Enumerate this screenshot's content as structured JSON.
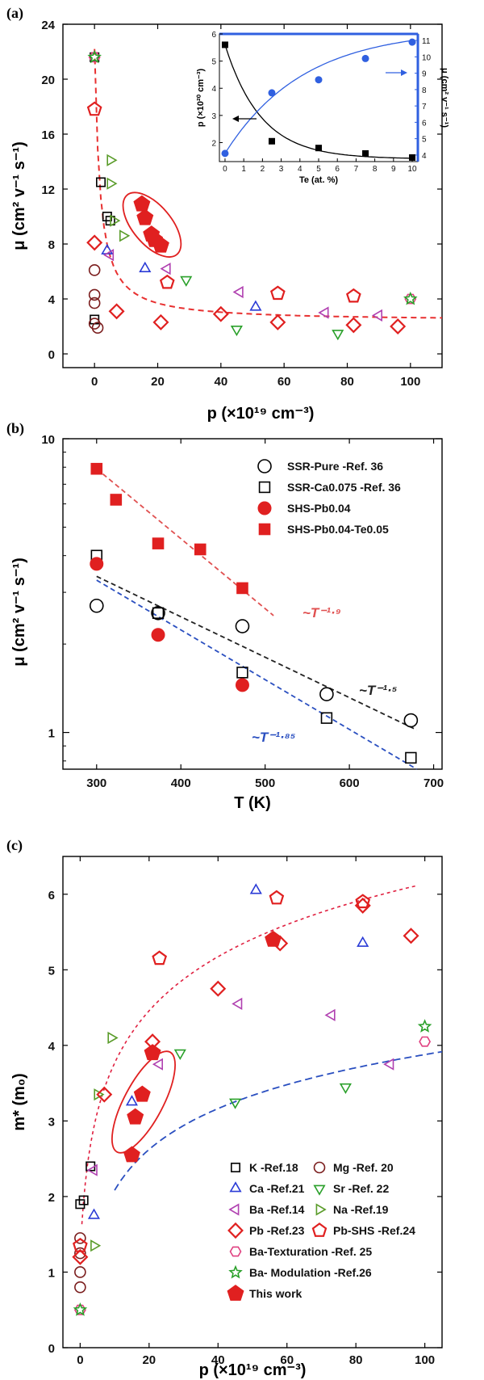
{
  "chart_data": [
    {
      "panel": "(a)",
      "type": "scatter",
      "xlabel": "p (×10¹⁹ cm⁻³)",
      "ylabel": "μ (cm² v⁻¹ s⁻¹)",
      "xlim": [
        -10,
        110
      ],
      "ylim": [
        -1,
        24
      ],
      "xticks": [
        0,
        20,
        40,
        60,
        80,
        100
      ],
      "yticks": [
        0,
        4,
        8,
        12,
        16,
        20,
        24
      ],
      "series": [
        {
          "marker": "square",
          "color": "#000000",
          "points": [
            [
              0,
              21.6
            ],
            [
              2,
              12.5
            ],
            [
              4,
              10
            ],
            [
              5,
              9.7
            ],
            [
              0,
              2.5
            ]
          ]
        },
        {
          "marker": "circle",
          "color": "#7a1c1c",
          "points": [
            [
              0,
              6.1
            ],
            [
              0,
              4.3
            ],
            [
              0,
              3.7
            ],
            [
              0,
              2.2
            ],
            [
              1,
              1.9
            ]
          ]
        },
        {
          "marker": "triangle-up",
          "color": "#2a3bd6",
          "points": [
            [
              4,
              7.5
            ],
            [
              16,
              6.2
            ],
            [
              51,
              3.4
            ]
          ]
        },
        {
          "marker": "triangle-down",
          "color": "#2aa02a",
          "points": [
            [
              29,
              5.4
            ],
            [
              45,
              1.8
            ],
            [
              77,
              1.5
            ]
          ]
        },
        {
          "marker": "triangle-left",
          "color": "#b040b0",
          "points": [
            [
              5,
              7.2
            ],
            [
              23,
              6.2
            ],
            [
              46,
              4.5
            ],
            [
              73,
              3.0
            ],
            [
              90,
              2.8
            ]
          ]
        },
        {
          "marker": "triangle-right",
          "color": "#5a9c2a",
          "points": [
            [
              5,
              14.1
            ],
            [
              5,
              12.4
            ],
            [
              6,
              9.7
            ],
            [
              9,
              8.6
            ]
          ]
        },
        {
          "marker": "diamond",
          "color": "#e02020",
          "points": [
            [
              0,
              8.1
            ],
            [
              7,
              3.1
            ],
            [
              21,
              2.3
            ],
            [
              40,
              2.9
            ],
            [
              58,
              2.3
            ],
            [
              82,
              2.1
            ],
            [
              96,
              2.0
            ]
          ]
        },
        {
          "marker": "pentagon",
          "color": "#e02020",
          "points": [
            [
              0,
              17.8
            ],
            [
              23,
              5.2
            ],
            [
              58,
              4.4
            ],
            [
              82,
              4.2
            ]
          ]
        },
        {
          "marker": "hexagon",
          "color": "#e04080",
          "points": [
            [
              0,
              21.6
            ],
            [
              100,
              4.0
            ]
          ]
        },
        {
          "marker": "star",
          "color": "#2aa02a",
          "points": [
            [
              0,
              21.6
            ],
            [
              100,
              4.0
            ]
          ]
        },
        {
          "marker": "filled-pentagon",
          "color": "#e02020",
          "points": [
            [
              15,
              10.9
            ],
            [
              16,
              9.9
            ],
            [
              18,
              8.7
            ],
            [
              19,
              8.3
            ],
            [
              21,
              7.9
            ]
          ]
        }
      ],
      "inset": {
        "xlabel": "Te (at. %)",
        "ylabel_left": "p (×10²⁰ cm⁻³)",
        "ylabel_right": "μ (cm² v⁻¹ s⁻¹)",
        "xlim": [
          -0.3,
          10.3
        ],
        "ylim_left": [
          1.3,
          6
        ],
        "ylim_right": [
          3.6,
          11.4
        ],
        "xticks": [
          0,
          1,
          2,
          3,
          4,
          5,
          6,
          7,
          8,
          9,
          10
        ],
        "yticks_left": [
          2,
          3,
          4,
          5,
          6
        ],
        "yticks_right": [
          4,
          5,
          6,
          7,
          8,
          9,
          10,
          11
        ],
        "left_series": {
          "color": "#000000",
          "x": [
            0,
            2.5,
            5,
            7.5,
            10
          ],
          "y": [
            5.6,
            2.05,
            1.8,
            1.6,
            1.45
          ]
        },
        "right_series": {
          "color": "#3060e0",
          "x": [
            0,
            2.5,
            5,
            7.5,
            10
          ],
          "y": [
            4.1,
            7.8,
            8.6,
            9.9,
            10.9
          ]
        }
      }
    },
    {
      "panel": "(b)",
      "type": "scatter",
      "xlabel": "T (K)",
      "ylabel": "μ (cm² v⁻¹ s⁻¹)",
      "yscale": "log",
      "xlim": [
        260,
        710
      ],
      "ylim": [
        0.75,
        10
      ],
      "xticks": [
        300,
        400,
        500,
        600,
        700
      ],
      "yticks": [
        1,
        10
      ],
      "legend_position": "top-right",
      "series": [
        {
          "name": "SSR-Pure -Ref. 36",
          "marker": "open-circle",
          "color": "#000000",
          "x": [
            300,
            373,
            473,
            573,
            673
          ],
          "y": [
            2.7,
            2.55,
            2.3,
            1.35,
            1.1
          ]
        },
        {
          "name": "SSR-Ca0.075 -Ref. 36",
          "marker": "open-square",
          "color": "#000000",
          "x": [
            300,
            373,
            473,
            573,
            673
          ],
          "y": [
            4.0,
            2.55,
            1.6,
            1.12,
            0.82
          ]
        },
        {
          "name": "SHS-Pb0.04",
          "marker": "filled-circle",
          "color": "#e02020",
          "x": [
            300,
            373,
            473
          ],
          "y": [
            3.75,
            2.15,
            1.45
          ]
        },
        {
          "name": "SHS-Pb0.04-Te0.05",
          "marker": "filled-square",
          "color": "#e02020",
          "x": [
            300,
            323,
            373,
            423,
            473
          ],
          "y": [
            7.9,
            6.2,
            4.4,
            4.2,
            3.1
          ]
        }
      ],
      "fits": [
        {
          "label": "~T⁻¹·⁹",
          "color": "#e05050",
          "x": [
            300,
            510
          ],
          "y": [
            7.9,
            2.5
          ]
        },
        {
          "label": "~T⁻¹·⁵",
          "color": "#222222",
          "x": [
            300,
            680
          ],
          "y": [
            3.4,
            1.02
          ]
        },
        {
          "label": "~T⁻¹·⁸⁵",
          "color": "#2a4fc0",
          "x": [
            300,
            680
          ],
          "y": [
            3.3,
            0.75
          ]
        }
      ]
    },
    {
      "panel": "(c)",
      "type": "scatter",
      "xlabel": "p (×10¹⁹ cm⁻³)",
      "ylabel": "m* (m₀)",
      "xlim": [
        -5,
        105
      ],
      "ylim": [
        0,
        6.5
      ],
      "xticks": [
        0,
        20,
        40,
        60,
        80,
        100
      ],
      "yticks": [
        0,
        1,
        2,
        3,
        4,
        5,
        6
      ],
      "legend_position": "bottom-right",
      "series": [
        {
          "name": "K -Ref.18",
          "marker": "square",
          "color": "#000000",
          "points": [
            [
              0,
              1.9
            ],
            [
              1,
              1.95
            ],
            [
              3,
              2.4
            ]
          ]
        },
        {
          "name": "Mg -Ref. 20",
          "marker": "circle",
          "color": "#7a1c1c",
          "points": [
            [
              0,
              1.45
            ],
            [
              0,
              1.25
            ],
            [
              0,
              1.0
            ],
            [
              0,
              0.8
            ]
          ]
        },
        {
          "name": "Ca -Ref.21",
          "marker": "triangle-up",
          "color": "#2a3bd6",
          "points": [
            [
              4,
              1.75
            ],
            [
              15,
              3.25
            ],
            [
              51,
              6.05
            ],
            [
              82,
              5.35
            ]
          ]
        },
        {
          "name": "Sr -Ref. 22",
          "marker": "triangle-down",
          "color": "#2aa02a",
          "points": [
            [
              29,
              3.9
            ],
            [
              45,
              3.25
            ],
            [
              77,
              3.45
            ]
          ]
        },
        {
          "name": "Ba -Ref.14",
          "marker": "triangle-left",
          "color": "#b040b0",
          "points": [
            [
              4,
              2.35
            ],
            [
              23,
              3.75
            ],
            [
              46,
              4.55
            ],
            [
              73,
              4.4
            ],
            [
              90,
              3.75
            ]
          ]
        },
        {
          "name": "Na -Ref.19",
          "marker": "triangle-right",
          "color": "#5a9c2a",
          "points": [
            [
              4,
              1.35
            ],
            [
              5,
              3.35
            ],
            [
              9,
              4.1
            ]
          ]
        },
        {
          "name": "Pb -Ref.23",
          "marker": "diamond",
          "color": "#e02020",
          "points": [
            [
              0,
              1.2
            ],
            [
              7,
              3.35
            ],
            [
              21,
              4.05
            ],
            [
              40,
              4.75
            ],
            [
              58,
              5.35
            ],
            [
              82,
              5.85
            ],
            [
              96,
              5.45
            ]
          ]
        },
        {
          "name": "Pb-SHS -Ref.24",
          "marker": "pentagon",
          "color": "#e02020",
          "points": [
            [
              0,
              1.35
            ],
            [
              23,
              5.15
            ],
            [
              57,
              5.95
            ],
            [
              82,
              5.9
            ]
          ]
        },
        {
          "name": "Ba-Texturation -Ref. 25",
          "marker": "hexagon",
          "color": "#e04080",
          "points": [
            [
              0,
              0.5
            ],
            [
              100,
              4.05
            ]
          ]
        },
        {
          "name": "Ba- Modulation -Ref.26",
          "marker": "star",
          "color": "#2aa02a",
          "points": [
            [
              0,
              0.5
            ],
            [
              100,
              4.25
            ]
          ]
        },
        {
          "name": "This work",
          "marker": "filled-pentagon",
          "color": "#e02020",
          "points": [
            [
              15,
              2.55
            ],
            [
              16,
              3.05
            ],
            [
              18,
              3.35
            ],
            [
              21,
              3.9
            ],
            [
              56,
              5.4
            ]
          ]
        }
      ]
    }
  ]
}
